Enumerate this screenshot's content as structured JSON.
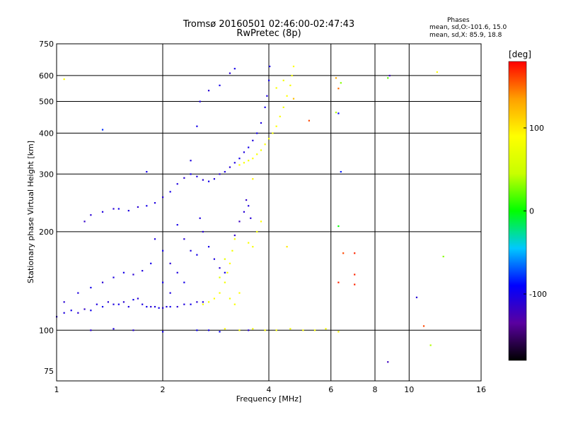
{
  "header": {
    "title_line1": "Tromsø 20160501 02:46:00-02:47:43",
    "title_line2": "RwPretec (8p)"
  },
  "stats": {
    "title": "Phases",
    "o_line": "mean, sd,O:-101.6, 15.0",
    "x_line": "mean, sd,X:  85.9, 18.8"
  },
  "colorbar": {
    "label": "[deg]",
    "ticks": [
      {
        "value": 100,
        "label": "100"
      },
      {
        "value": 0,
        "label": "0"
      },
      {
        "value": -100,
        "label": "-100"
      }
    ],
    "range": [
      -180,
      180
    ],
    "colors": [
      "#000000",
      "#5a00a0",
      "#0000ff",
      "#00c8ff",
      "#00ff00",
      "#c8ff00",
      "#ffff00",
      "#ffa000",
      "#ff0000"
    ]
  },
  "chart_data": {
    "type": "scatter",
    "xlabel": "Frequency [MHz]",
    "ylabel": "Stationary phase Virtual Height [km]",
    "xscale": "log",
    "yscale": "log",
    "xlim": [
      1,
      16
    ],
    "ylim": [
      70,
      750
    ],
    "xticks": [
      {
        "value": 1,
        "label": "1"
      },
      {
        "value": 2,
        "label": "2"
      },
      {
        "value": 4,
        "label": "4"
      },
      {
        "value": 6,
        "label": "6"
      },
      {
        "value": 8,
        "label": "8"
      },
      {
        "value": 10,
        "label": "10"
      },
      {
        "value": 16,
        "label": "16"
      }
    ],
    "yticks": [
      {
        "value": 75,
        "label": "75"
      },
      {
        "value": 100,
        "label": "100"
      },
      {
        "value": 200,
        "label": "200"
      },
      {
        "value": 300,
        "label": "300"
      },
      {
        "value": 400,
        "label": "400"
      },
      {
        "value": 500,
        "label": "500"
      },
      {
        "value": 600,
        "label": "600"
      },
      {
        "value": 750,
        "label": "750"
      }
    ],
    "xgrid": [
      2,
      4,
      6,
      8,
      10
    ],
    "ygrid": [
      100,
      200,
      300,
      400,
      500,
      600
    ],
    "color_scale": "phase in degrees",
    "series": [
      {
        "points": [
          [
            1.0,
            110,
            -110
          ],
          [
            1.05,
            113,
            -105
          ],
          [
            1.1,
            115,
            -100
          ],
          [
            1.15,
            113,
            -110
          ],
          [
            1.2,
            116,
            -115
          ],
          [
            1.25,
            115,
            -100
          ],
          [
            1.3,
            120,
            -105
          ],
          [
            1.35,
            118,
            -100
          ],
          [
            1.4,
            122,
            -110
          ],
          [
            1.45,
            120,
            -105
          ],
          [
            1.5,
            120,
            -100
          ],
          [
            1.55,
            122,
            -110
          ],
          [
            1.6,
            118,
            -105
          ],
          [
            1.65,
            124,
            -100
          ],
          [
            1.7,
            125,
            -110
          ],
          [
            1.75,
            120,
            -105
          ],
          [
            1.8,
            118,
            -100
          ],
          [
            1.85,
            118,
            -110
          ],
          [
            1.9,
            118,
            -105
          ],
          [
            1.95,
            117,
            -100
          ],
          [
            2.0,
            117,
            -110
          ],
          [
            2.05,
            118,
            -105
          ],
          [
            2.1,
            118,
            -100
          ],
          [
            2.2,
            118,
            -110
          ],
          [
            2.3,
            120,
            -105
          ],
          [
            2.4,
            120,
            -100
          ],
          [
            2.5,
            122,
            -110
          ],
          [
            2.6,
            122,
            -105
          ],
          [
            1.05,
            122,
            -110
          ],
          [
            1.15,
            130,
            -105
          ],
          [
            1.25,
            135,
            -100
          ],
          [
            1.35,
            140,
            -110
          ],
          [
            1.45,
            145,
            -105
          ],
          [
            1.55,
            150,
            -100
          ],
          [
            1.65,
            148,
            -110
          ],
          [
            1.75,
            152,
            -105
          ],
          [
            1.85,
            160,
            -100
          ],
          [
            1.2,
            215,
            -115
          ],
          [
            1.25,
            225,
            -110
          ],
          [
            1.35,
            230,
            -105
          ],
          [
            1.45,
            235,
            -110
          ],
          [
            1.5,
            235,
            -100
          ],
          [
            1.6,
            232,
            -105
          ],
          [
            1.7,
            238,
            -110
          ],
          [
            1.8,
            240,
            -100
          ],
          [
            1.9,
            245,
            -105
          ],
          [
            2.0,
            255,
            -110
          ],
          [
            2.1,
            265,
            -100
          ],
          [
            2.2,
            280,
            -105
          ],
          [
            2.3,
            292,
            -110
          ],
          [
            2.4,
            300,
            -100
          ],
          [
            2.5,
            295,
            -105
          ],
          [
            2.6,
            288,
            -110
          ],
          [
            2.7,
            285,
            -100
          ],
          [
            2.8,
            290,
            -105
          ],
          [
            2.9,
            300,
            -110
          ],
          [
            3.0,
            305,
            -105
          ],
          [
            3.1,
            315,
            -110
          ],
          [
            3.2,
            325,
            -105
          ],
          [
            3.3,
            335,
            -100
          ],
          [
            3.4,
            350,
            -105
          ],
          [
            3.5,
            362,
            -100
          ],
          [
            3.6,
            380,
            -105
          ],
          [
            3.7,
            400,
            -100
          ],
          [
            3.8,
            430,
            -105
          ],
          [
            3.9,
            480,
            -100
          ],
          [
            3.95,
            520,
            -105
          ],
          [
            4.0,
            580,
            -100
          ],
          [
            4.02,
            640,
            -105
          ],
          [
            2.4,
            330,
            -105
          ],
          [
            2.5,
            420,
            -100
          ],
          [
            2.55,
            500,
            -105
          ],
          [
            2.7,
            540,
            -110
          ],
          [
            2.9,
            560,
            -100
          ],
          [
            3.1,
            610,
            -110
          ],
          [
            3.2,
            630,
            -100
          ],
          [
            1.9,
            190,
            -105
          ],
          [
            2.0,
            175,
            -100
          ],
          [
            2.1,
            160,
            -110
          ],
          [
            2.2,
            150,
            -105
          ],
          [
            2.3,
            140,
            -100
          ],
          [
            2.0,
            140,
            -100
          ],
          [
            2.1,
            130,
            -105
          ],
          [
            2.2,
            210,
            -100
          ],
          [
            2.3,
            190,
            -110
          ],
          [
            2.4,
            175,
            -105
          ],
          [
            2.5,
            170,
            -100
          ],
          [
            2.55,
            220,
            -105
          ],
          [
            2.6,
            200,
            -110
          ],
          [
            2.7,
            180,
            -100
          ],
          [
            2.8,
            165,
            -105
          ],
          [
            2.9,
            155,
            -110
          ],
          [
            3.0,
            150,
            -100
          ],
          [
            3.2,
            195,
            -115
          ],
          [
            3.3,
            215,
            -120
          ],
          [
            3.4,
            230,
            -110
          ],
          [
            3.45,
            250,
            -115
          ],
          [
            3.5,
            240,
            -105
          ],
          [
            3.55,
            220,
            -110
          ],
          [
            1.25,
            100,
            -110
          ],
          [
            1.45,
            101,
            -105
          ],
          [
            1.65,
            100,
            -110
          ],
          [
            2.0,
            99,
            -100
          ],
          [
            2.5,
            100,
            -95
          ],
          [
            2.7,
            100,
            -100
          ],
          [
            2.9,
            99,
            -95
          ],
          [
            3.5,
            100,
            -110
          ],
          [
            8.7,
            80,
            -120
          ],
          [
            8.8,
            600,
            -120
          ],
          [
            6.3,
            460,
            -90
          ],
          [
            10.5,
            126,
            -110
          ],
          [
            1.35,
            410,
            -80
          ],
          [
            1.8,
            305,
            -100
          ],
          [
            6.4,
            305,
            -85
          ]
        ]
      },
      {
        "points": [
          [
            3.3,
            320,
            90
          ],
          [
            3.4,
            325,
            85
          ],
          [
            3.5,
            330,
            80
          ],
          [
            3.6,
            335,
            90
          ],
          [
            3.7,
            345,
            85
          ],
          [
            3.8,
            355,
            80
          ],
          [
            3.9,
            370,
            90
          ],
          [
            4.0,
            385,
            85
          ],
          [
            4.1,
            400,
            80
          ],
          [
            4.2,
            420,
            90
          ],
          [
            4.3,
            450,
            85
          ],
          [
            4.4,
            480,
            80
          ],
          [
            4.5,
            520,
            90
          ],
          [
            4.6,
            560,
            85
          ],
          [
            4.65,
            600,
            80
          ],
          [
            4.7,
            640,
            90
          ],
          [
            4.2,
            550,
            85
          ],
          [
            4.4,
            580,
            80
          ],
          [
            2.6,
            120,
            85
          ],
          [
            2.7,
            122,
            80
          ],
          [
            2.8,
            125,
            90
          ],
          [
            2.9,
            130,
            85
          ],
          [
            3.0,
            140,
            80
          ],
          [
            3.05,
            150,
            85
          ],
          [
            3.1,
            160,
            90
          ],
          [
            3.15,
            175,
            80
          ],
          [
            3.2,
            190,
            85
          ],
          [
            3.1,
            125,
            80
          ],
          [
            3.2,
            120,
            85
          ],
          [
            3.3,
            130,
            90
          ],
          [
            3.6,
            180,
            85
          ],
          [
            3.7,
            200,
            80
          ],
          [
            3.8,
            215,
            90
          ],
          [
            3.5,
            185,
            85
          ],
          [
            2.9,
            145,
            65
          ],
          [
            3.0,
            165,
            70
          ],
          [
            3.0,
            101,
            90
          ],
          [
            3.3,
            100,
            85
          ],
          [
            3.6,
            101,
            80
          ],
          [
            3.9,
            100,
            90
          ],
          [
            4.2,
            100,
            85
          ],
          [
            4.6,
            101,
            80
          ],
          [
            5.0,
            100,
            90
          ],
          [
            5.4,
            100,
            85
          ],
          [
            5.8,
            101,
            80
          ],
          [
            6.3,
            99,
            90
          ],
          [
            12.0,
            615,
            90
          ],
          [
            3.6,
            290,
            95
          ],
          [
            4.5,
            180,
            100
          ],
          [
            1.05,
            585,
            90
          ]
        ]
      },
      {
        "points": [
          [
            7.0,
            172,
            170
          ],
          [
            7.0,
            148,
            170
          ],
          [
            7.0,
            138,
            170
          ],
          [
            6.3,
            140,
            170
          ],
          [
            6.5,
            172,
            160
          ],
          [
            5.2,
            437,
            160
          ],
          [
            11.0,
            103,
            160
          ],
          [
            4.7,
            510,
            120
          ],
          [
            6.2,
            590,
            130
          ],
          [
            6.3,
            548,
            150
          ]
        ]
      },
      {
        "points": [
          [
            6.2,
            463,
            40
          ],
          [
            6.4,
            570,
            30
          ],
          [
            8.7,
            590,
            20
          ],
          [
            6.3,
            208,
            0
          ],
          [
            12.5,
            168,
            30
          ],
          [
            11.5,
            90,
            40
          ]
        ]
      }
    ]
  }
}
